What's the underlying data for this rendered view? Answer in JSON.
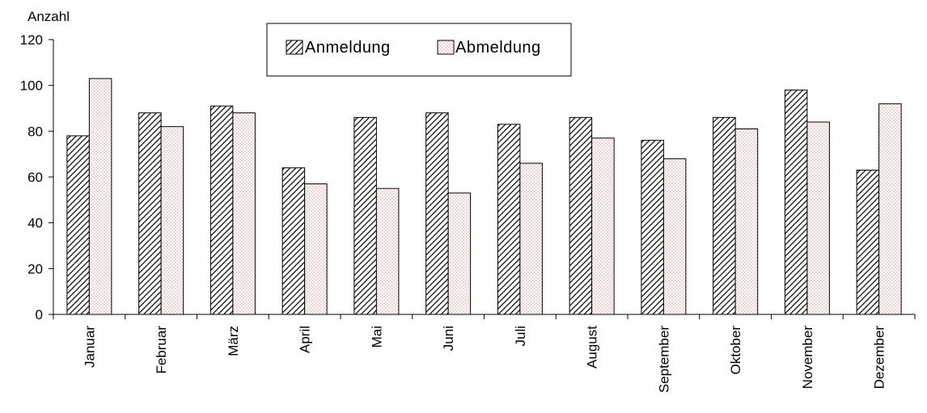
{
  "chart_data": {
    "type": "bar",
    "ylabel": "Anzahl",
    "xlabel": "",
    "ylim": [
      0,
      120
    ],
    "yticks": [
      0,
      20,
      40,
      60,
      80,
      100,
      120
    ],
    "categories": [
      "Januar",
      "Februar",
      "März",
      "April",
      "Mai",
      "Juni",
      "Juli",
      "August",
      "September",
      "Oktober",
      "November",
      "Dezember"
    ],
    "series": [
      {
        "name": "Anmeldung",
        "pattern": "diagonal-hatch",
        "values": [
          78,
          88,
          91,
          64,
          86,
          88,
          83,
          86,
          76,
          86,
          98,
          63
        ]
      },
      {
        "name": "Abmeldung",
        "pattern": "pink-dots",
        "values": [
          103,
          82,
          88,
          57,
          55,
          53,
          66,
          77,
          68,
          81,
          84,
          92
        ]
      }
    ],
    "legend_position": "top",
    "grid": false,
    "colors": {
      "hatch": "#000000",
      "dots": "#e0a0a0",
      "dots_bg": "#ffffff"
    }
  }
}
